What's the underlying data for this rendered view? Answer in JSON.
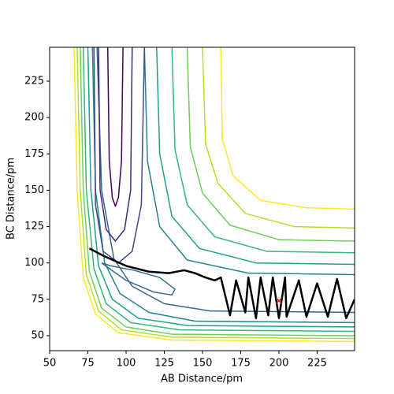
{
  "chart_data": {
    "type": "contour",
    "x_label": "AB Distance/pm",
    "y_label": "BC Distance/pm",
    "xlim": [
      50,
      249.5
    ],
    "ylim": [
      39.7,
      248.3
    ],
    "xticks": [
      50,
      75,
      100,
      125,
      150,
      175,
      200,
      225
    ],
    "yticks": [
      50,
      75,
      100,
      125,
      150,
      175,
      200,
      225
    ],
    "contours": [
      {
        "color": "#fde725",
        "x": [
          66,
          68,
          72,
          80,
          95,
          130,
          249.5
        ],
        "y": [
          248.3,
          150,
          90,
          65,
          52,
          47,
          46
        ]
      },
      {
        "color": "#b5de2b",
        "x": [
          68,
          70,
          74,
          82,
          97,
          130,
          249.5
        ],
        "y": [
          248.3,
          150,
          92,
          67,
          54,
          49,
          48
        ]
      },
      {
        "color": "#6ece58",
        "x": [
          70,
          72,
          76,
          84,
          100,
          130,
          249.5
        ],
        "y": [
          248.3,
          150,
          94,
          69,
          56,
          51,
          50
        ]
      },
      {
        "color": "#35b779",
        "x": [
          72,
          74,
          79,
          87,
          103,
          135,
          249.5
        ],
        "y": [
          248.3,
          150,
          96,
          72,
          59,
          54,
          53
        ]
      },
      {
        "color": "#1f9e89",
        "x": [
          75,
          77,
          82,
          91,
          108,
          140,
          249.5
        ],
        "y": [
          248.3,
          150,
          98,
          75,
          62,
          57,
          56
        ]
      },
      {
        "color": "#26828e",
        "x": [
          78,
          80,
          86,
          96,
          115,
          145,
          249.5
        ],
        "y": [
          248.3,
          150,
          100,
          79,
          66,
          60,
          59
        ]
      },
      {
        "color": "#31688e",
        "x": [
          81,
          84,
          92,
          104,
          125,
          155,
          249.5
        ],
        "y": [
          248.3,
          150,
          103,
          84,
          72,
          67,
          66
        ]
      },
      {
        "color": "#26828e",
        "x": [
          112,
          114,
          122,
          140,
          180,
          249.5
        ],
        "y": [
          248.3,
          170,
          125,
          102,
          93,
          92
        ]
      },
      {
        "color": "#1f9e89",
        "x": [
          120,
          122,
          130,
          148,
          185,
          249.5
        ],
        "y": [
          248.3,
          175,
          132,
          110,
          100,
          99
        ]
      },
      {
        "color": "#35b779",
        "x": [
          130,
          132,
          140,
          158,
          192,
          249.5
        ],
        "y": [
          248.3,
          178,
          140,
          118,
          108,
          107
        ]
      },
      {
        "color": "#6ece58",
        "x": [
          140,
          142,
          150,
          168,
          200,
          249.5
        ],
        "y": [
          248.3,
          180,
          148,
          126,
          116,
          115
        ]
      },
      {
        "color": "#b5de2b",
        "x": [
          150,
          152,
          160,
          178,
          210,
          249.5
        ],
        "y": [
          248.3,
          182,
          155,
          134,
          125,
          124
        ]
      },
      {
        "color": "#fde725",
        "x": [
          162,
          163,
          170,
          188,
          218,
          249.5
        ],
        "y": [
          248.3,
          185,
          160,
          143,
          138,
          137
        ]
      },
      {
        "color": "#440154",
        "x": [
          88,
          89,
          91,
          93,
          95,
          97,
          98
        ],
        "y": [
          248.3,
          170,
          145,
          139,
          145,
          170,
          248.3
        ]
      },
      {
        "color": "#482878",
        "x": [
          82,
          83,
          87,
          93,
          99,
          103,
          104
        ],
        "y": [
          248.3,
          150,
          123,
          115,
          123,
          150,
          248.3
        ]
      },
      {
        "color": "#3e4989",
        "x": [
          79,
          80,
          85,
          95,
          104,
          110,
          112
        ],
        "y": [
          248.3,
          140,
          108,
          100,
          108,
          140,
          248.3
        ]
      },
      {
        "color": "#31688e",
        "x": [
          84,
          100,
          118,
          130,
          132,
          122,
          105,
          90,
          84
        ],
        "y": [
          100,
          88,
          80,
          78,
          82,
          90,
          95,
          98,
          100
        ]
      }
    ],
    "trajectory": {
      "color": "#000000",
      "x": [
        76,
        85,
        100,
        115,
        128,
        138,
        145,
        152,
        158,
        162,
        168,
        172,
        178,
        180,
        185,
        188,
        193,
        196,
        200,
        204,
        205,
        213,
        218,
        225,
        232,
        238,
        244,
        249.5
      ],
      "y": [
        110,
        105,
        98,
        94,
        93,
        95,
        93,
        90,
        88,
        90,
        64,
        88,
        66,
        90,
        62,
        90,
        64,
        90,
        62,
        90,
        63,
        88,
        63,
        86,
        63,
        89,
        62,
        75
      ]
    },
    "marker": {
      "color": "#d62728",
      "x": 200,
      "y": 74
    }
  }
}
